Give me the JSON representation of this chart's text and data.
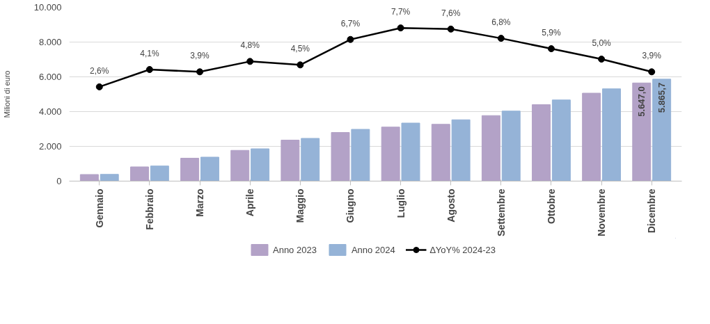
{
  "chart_data": {
    "type": "bar",
    "ylabel": "Milioni di euro",
    "categories": [
      "Gennaio",
      "Febbraio",
      "Marzo",
      "Aprile",
      "Maggio",
      "Giugno",
      "Luglio",
      "Agosto",
      "Settembre",
      "Ottobre",
      "Novembre",
      "Dicembre"
    ],
    "series": [
      {
        "name": "Anno 2023",
        "color": "#b3a2c7",
        "values": [
          380,
          820,
          1320,
          1770,
          2360,
          2800,
          3110,
          3270,
          3770,
          4400,
          5060,
          5647.0
        ],
        "value_labels": [
          null,
          null,
          null,
          null,
          null,
          null,
          null,
          null,
          null,
          null,
          null,
          "5.647,0"
        ]
      },
      {
        "name": "Anno 2024",
        "color": "#95b3d7",
        "values": [
          390,
          870,
          1380,
          1860,
          2460,
          2980,
          3340,
          3530,
          4030,
          4670,
          5310,
          5865.7
        ],
        "value_labels": [
          null,
          null,
          null,
          null,
          null,
          null,
          null,
          null,
          null,
          null,
          null,
          "5.865,7"
        ]
      },
      {
        "name": "∆YoY% 2024-23",
        "type": "line",
        "axis": "y2",
        "color": "#000000",
        "marker": "circle",
        "data_labels": true,
        "value_labels": [
          "2,6%",
          "4,1%",
          "3,9%",
          "4,8%",
          "4,5%",
          "6,7%",
          "7,7%",
          "7,6%",
          "6,8%",
          "5,9%",
          "5,0%",
          "3,9%"
        ],
        "values": [
          2.6,
          4.1,
          3.9,
          4.8,
          4.5,
          6.7,
          7.7,
          7.6,
          6.8,
          5.9,
          5.0,
          3.9
        ]
      }
    ],
    "ylim": [
      0,
      10000
    ],
    "yticks": [
      {
        "value": 0,
        "label": "0"
      },
      {
        "value": 2000,
        "label": "2.000"
      },
      {
        "value": 4000,
        "label": "4.000"
      },
      {
        "value": 6000,
        "label": "6.000"
      },
      {
        "value": 8000,
        "label": "8.000"
      },
      {
        "value": 10000,
        "label": "10.000"
      }
    ],
    "grid": "y",
    "legend": "bottom"
  }
}
